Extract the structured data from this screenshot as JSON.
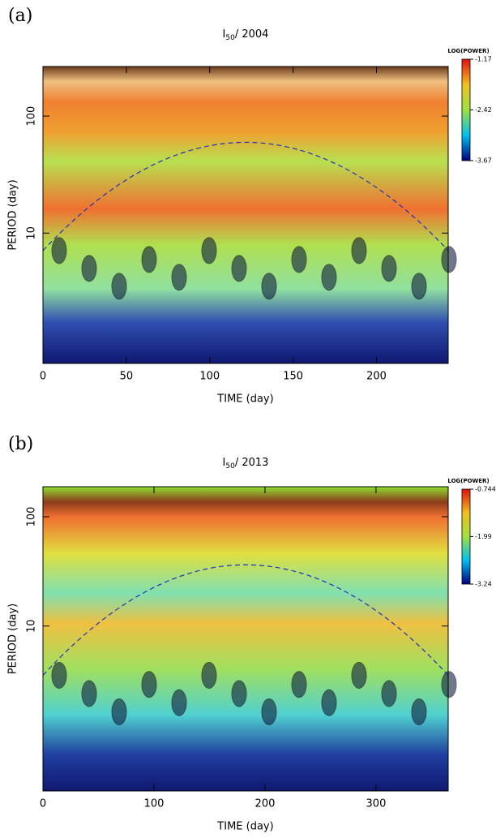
{
  "chart_data": [
    {
      "type": "heatmap",
      "panel_label": "(a)",
      "title": {
        "main": "I",
        "subscript": "50",
        "rest": "/ 2004"
      },
      "xlabel": "TIME (day)",
      "ylabel": "PERIOD (day)",
      "xlim": [
        0,
        243
      ],
      "xticks": [
        0,
        50,
        100,
        150,
        200
      ],
      "ylim": [
        0.77,
        265
      ],
      "yticks": [
        10,
        100
      ],
      "ylog": true,
      "colorbar": {
        "title": "LOG(POWER)",
        "lim": [
          -3.67,
          -1.17
        ],
        "ticks": [
          -3.67,
          -2.42,
          -1.17
        ]
      }
    },
    {
      "type": "heatmap",
      "panel_label": "(b)",
      "title": {
        "main": "I",
        "subscript": "50",
        "rest": "/ 2013"
      },
      "xlabel": "TIME (day)",
      "ylabel": "PERIOD (day)",
      "xlim": [
        0,
        365
      ],
      "xticks": [
        0,
        100,
        200,
        300
      ],
      "ylim": [
        0.31,
        188
      ],
      "yticks": [
        10,
        100
      ],
      "ylog": true,
      "colorbar": {
        "title": "LOG(POWER)",
        "lim": [
          -3.24,
          -0.744
        ],
        "ticks": [
          -3.24,
          -1.99,
          -0.744
        ]
      }
    }
  ]
}
